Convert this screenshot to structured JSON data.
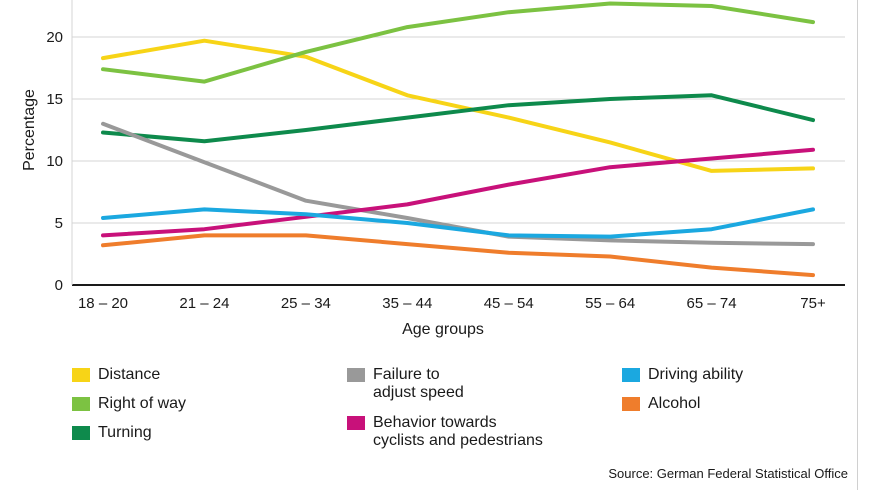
{
  "chart_data": {
    "type": "line",
    "title": "",
    "xlabel": "Age groups",
    "ylabel": "Percentage",
    "categories": [
      "18 – 20",
      "21 – 24",
      "25 – 34",
      "35 – 44",
      "45 – 54",
      "55 – 64",
      "65 – 74",
      "75+"
    ],
    "yticks": [
      0,
      5,
      10,
      15,
      20
    ],
    "ylim": [
      0,
      23
    ],
    "grid": true,
    "series": [
      {
        "name": "Distance",
        "color": "#f7d417",
        "values": [
          18.3,
          19.7,
          18.4,
          15.3,
          13.5,
          11.5,
          9.2,
          9.4
        ]
      },
      {
        "name": "Right of way",
        "color": "#7cc242",
        "values": [
          17.4,
          16.4,
          18.8,
          20.8,
          22.0,
          22.7,
          22.5,
          21.2
        ]
      },
      {
        "name": "Turning",
        "color": "#0e8a4c",
        "values": [
          12.3,
          11.6,
          12.5,
          13.5,
          14.5,
          15.0,
          15.3,
          13.3
        ]
      },
      {
        "name": "Failure to adjust speed",
        "color": "#999999",
        "values": [
          13.0,
          9.9,
          6.8,
          5.4,
          3.9,
          3.6,
          3.4,
          3.3
        ]
      },
      {
        "name": "Behavior towards cyclists and pedestrians",
        "color": "#c8117a",
        "values": [
          4.0,
          4.5,
          5.5,
          6.5,
          8.1,
          9.5,
          10.2,
          10.9
        ]
      },
      {
        "name": "Driving ability",
        "color": "#1ba8e0",
        "values": [
          5.4,
          6.1,
          5.7,
          5.0,
          4.0,
          3.9,
          4.5,
          6.1
        ]
      },
      {
        "name": "Alcohol",
        "color": "#ef7d2c",
        "values": [
          3.2,
          4.0,
          4.0,
          3.3,
          2.6,
          2.3,
          1.4,
          0.8
        ]
      }
    ]
  },
  "legend": [
    {
      "label": "Distance",
      "color": "#f7d417"
    },
    {
      "label": "Right of way",
      "color": "#7cc242"
    },
    {
      "label": "Turning",
      "color": "#0e8a4c"
    },
    {
      "label": "Failure to\nadjust speed",
      "color": "#999999"
    },
    {
      "label": "Behavior towards\ncyclists and pedestrians",
      "color": "#c8117a"
    },
    {
      "label": "Driving ability",
      "color": "#1ba8e0"
    },
    {
      "label": "Alcohol",
      "color": "#ef7d2c"
    }
  ],
  "source": "Source: German Federal Statistical Office"
}
